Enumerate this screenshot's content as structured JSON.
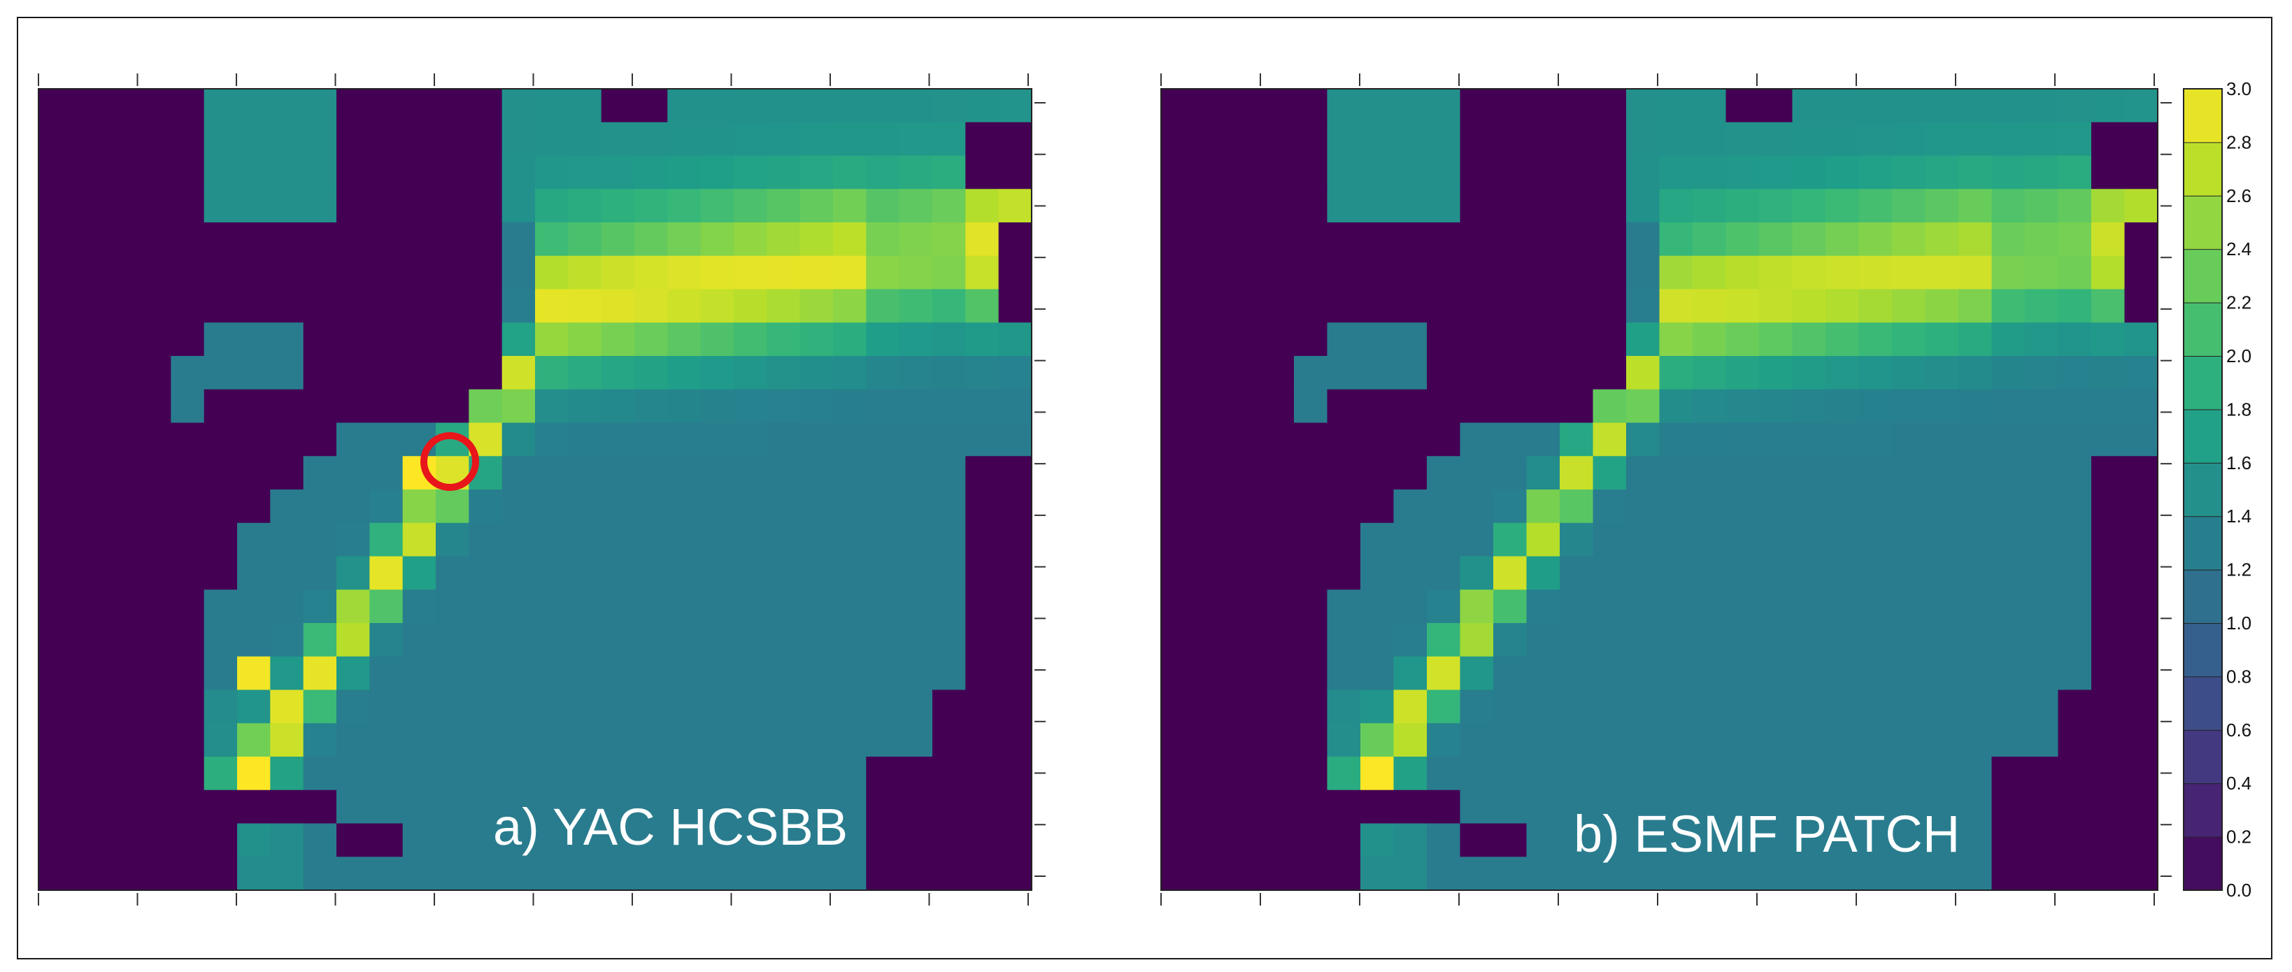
{
  "panels": [
    {
      "label": "a) YAC HCSBB",
      "marker": "red-circle"
    },
    {
      "label": "b) ESMF PATCH"
    }
  ],
  "colors": {
    "land": "#440154",
    "marker": "#e8151b",
    "colormap": [
      "#440154",
      "#472878",
      "#3e4a89",
      "#31688e",
      "#26828e",
      "#1f9e89",
      "#35b779",
      "#6ece58",
      "#b5de2b",
      "#fde725"
    ]
  },
  "chart_data": [
    {
      "type": "heatmap",
      "title": "a) YAC HCSBB",
      "colormap": "viridis",
      "vmin": 0.0,
      "vmax": 3.0,
      "grid": false,
      "annotations": [
        "red circle marking a high-value grid cell on the jet"
      ],
      "description_values": {
        "max": 3.0,
        "open_ocean_typical": 1.25,
        "jet_core": 2.7,
        "land": 0.0
      }
    },
    {
      "type": "heatmap",
      "title": "b) ESMF PATCH",
      "colormap": "viridis",
      "vmin": 0.0,
      "vmax": 3.0,
      "grid": false,
      "description_values": {
        "max": 2.9,
        "open_ocean_typical": 1.25,
        "jet_core": 2.6,
        "land": 0.0
      }
    }
  ],
  "colorbar": {
    "min": 0.0,
    "max": 3.0,
    "step": 0.2,
    "labels": [
      "3.0",
      "2.8",
      "2.6",
      "2.4",
      "2.2",
      "2.0",
      "1.8",
      "1.6",
      "1.4",
      "1.2",
      "1.0",
      "0.8",
      "0.6",
      "0.4",
      "0.2",
      "0.0"
    ]
  }
}
